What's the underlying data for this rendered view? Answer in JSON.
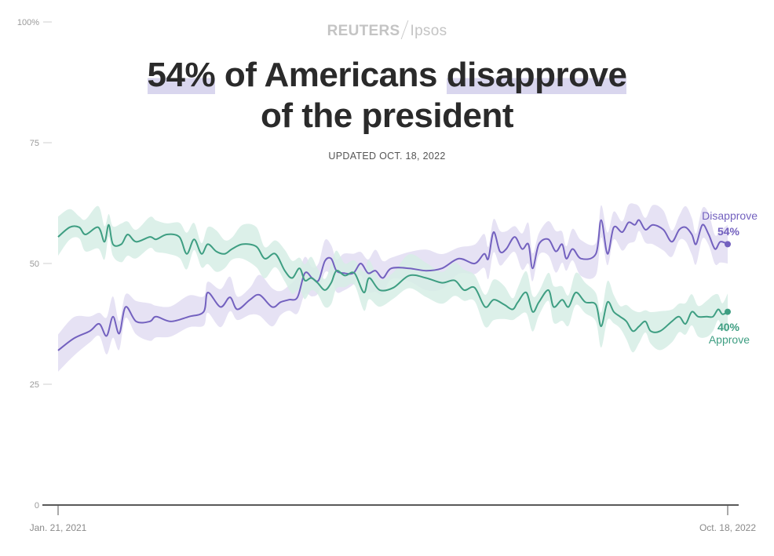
{
  "header": {
    "brand_left": "REUTERS",
    "brand_right": "Ipsos",
    "title_hl1": "54%",
    "title_mid": " of Americans ",
    "title_hl2": "disapprove",
    "title_line2": "of the president",
    "updated": "UPDATED OCT. 18, 2022"
  },
  "colors": {
    "disapprove": "#7361bf",
    "disapprove_band": "#e2ddf2",
    "approve": "#3e9e82",
    "approve_band": "#d6ede5",
    "axis": "#222222",
    "tick_text": "#9a9a9a"
  },
  "chart_data": {
    "type": "line",
    "y_ticks": [
      {
        "value": 100,
        "label": "100%"
      },
      {
        "value": 75,
        "label": "75"
      },
      {
        "value": 50,
        "label": "50"
      },
      {
        "value": 25,
        "label": "25"
      },
      {
        "value": 0,
        "label": "0"
      }
    ],
    "ylim": [
      0,
      100
    ],
    "x_range": [
      "2021-01-21",
      "2022-10-18"
    ],
    "x_tick_labels": [
      "Jan. 21, 2021",
      "Oct. 18, 2022"
    ],
    "end_labels": {
      "disapprove_name": "Disapprove",
      "disapprove_value": "54%",
      "approve_value": "40%",
      "approve_name": "Approve"
    },
    "series": [
      {
        "name": "Disapprove",
        "points": [
          [
            "2021-01-21",
            32
          ],
          [
            "2021-02-05",
            34.5
          ],
          [
            "2021-02-20",
            36
          ],
          [
            "2021-03-01",
            37.5
          ],
          [
            "2021-03-08",
            35
          ],
          [
            "2021-03-14",
            39
          ],
          [
            "2021-03-20",
            35.5
          ],
          [
            "2021-03-26",
            41
          ],
          [
            "2021-04-05",
            38
          ],
          [
            "2021-04-18",
            38
          ],
          [
            "2021-04-24",
            39
          ],
          [
            "2021-05-08",
            38
          ],
          [
            "2021-05-25",
            39
          ],
          [
            "2021-06-08",
            40
          ],
          [
            "2021-06-12",
            44
          ],
          [
            "2021-06-24",
            41
          ],
          [
            "2021-07-03",
            43
          ],
          [
            "2021-07-10",
            40.5
          ],
          [
            "2021-07-22",
            42.5
          ],
          [
            "2021-07-31",
            43.5
          ],
          [
            "2021-08-12",
            41
          ],
          [
            "2021-08-20",
            42
          ],
          [
            "2021-08-28",
            42.5
          ],
          [
            "2021-09-05",
            43
          ],
          [
            "2021-09-12",
            48
          ],
          [
            "2021-09-19",
            47
          ],
          [
            "2021-09-25",
            46.5
          ],
          [
            "2021-10-01",
            50.5
          ],
          [
            "2021-10-07",
            51
          ],
          [
            "2021-10-12",
            48.5
          ],
          [
            "2021-10-19",
            48
          ],
          [
            "2021-10-28",
            48
          ],
          [
            "2021-11-04",
            50
          ],
          [
            "2021-11-11",
            48
          ],
          [
            "2021-11-18",
            48.5
          ],
          [
            "2021-11-25",
            47
          ],
          [
            "2021-12-03",
            49
          ],
          [
            "2021-12-20",
            49
          ],
          [
            "2022-01-05",
            48.5
          ],
          [
            "2022-01-20",
            49
          ],
          [
            "2022-02-05",
            51
          ],
          [
            "2022-02-20",
            50
          ],
          [
            "2022-03-01",
            52
          ],
          [
            "2022-03-05",
            51
          ],
          [
            "2022-03-10",
            56.5
          ],
          [
            "2022-03-16",
            52.5
          ],
          [
            "2022-03-22",
            53
          ],
          [
            "2022-03-30",
            55.5
          ],
          [
            "2022-04-06",
            53
          ],
          [
            "2022-04-12",
            54
          ],
          [
            "2022-04-16",
            49
          ],
          [
            "2022-04-22",
            54
          ],
          [
            "2022-05-01",
            55
          ],
          [
            "2022-05-08",
            52.5
          ],
          [
            "2022-05-14",
            54
          ],
          [
            "2022-05-18",
            51
          ],
          [
            "2022-05-24",
            53
          ],
          [
            "2022-06-01",
            51
          ],
          [
            "2022-06-15",
            52
          ],
          [
            "2022-06-20",
            59
          ],
          [
            "2022-06-26",
            52
          ],
          [
            "2022-07-02",
            57.5
          ],
          [
            "2022-07-10",
            56.5
          ],
          [
            "2022-07-16",
            58.5
          ],
          [
            "2022-07-22",
            58
          ],
          [
            "2022-07-26",
            59
          ],
          [
            "2022-08-01",
            57
          ],
          [
            "2022-08-08",
            58
          ],
          [
            "2022-08-18",
            57
          ],
          [
            "2022-08-26",
            54.5
          ],
          [
            "2022-09-02",
            57
          ],
          [
            "2022-09-08",
            57.5
          ],
          [
            "2022-09-14",
            56
          ],
          [
            "2022-09-18",
            54
          ],
          [
            "2022-09-24",
            58
          ],
          [
            "2022-09-30",
            56
          ],
          [
            "2022-10-06",
            53
          ],
          [
            "2022-10-11",
            54.5
          ],
          [
            "2022-10-18",
            54
          ]
        ]
      },
      {
        "name": "Approve",
        "points": [
          [
            "2021-01-21",
            55.5
          ],
          [
            "2021-02-01",
            57.5
          ],
          [
            "2021-02-10",
            57.5
          ],
          [
            "2021-02-16",
            56
          ],
          [
            "2021-02-28",
            57.5
          ],
          [
            "2021-03-06",
            54.5
          ],
          [
            "2021-03-10",
            58
          ],
          [
            "2021-03-14",
            54
          ],
          [
            "2021-03-22",
            54
          ],
          [
            "2021-03-28",
            56
          ],
          [
            "2021-04-05",
            54.5
          ],
          [
            "2021-04-18",
            55.5
          ],
          [
            "2021-04-24",
            55
          ],
          [
            "2021-05-04",
            56
          ],
          [
            "2021-05-16",
            55.5
          ],
          [
            "2021-05-23",
            52
          ],
          [
            "2021-05-30",
            55
          ],
          [
            "2021-06-06",
            52
          ],
          [
            "2021-06-12",
            54
          ],
          [
            "2021-06-20",
            52.5
          ],
          [
            "2021-06-28",
            52
          ],
          [
            "2021-07-05",
            53
          ],
          [
            "2021-07-15",
            54
          ],
          [
            "2021-07-28",
            53.5
          ],
          [
            "2021-08-05",
            51
          ],
          [
            "2021-08-15",
            52
          ],
          [
            "2021-08-24",
            48.5
          ],
          [
            "2021-08-31",
            47
          ],
          [
            "2021-09-07",
            49
          ],
          [
            "2021-09-12",
            46.5
          ],
          [
            "2021-09-18",
            47
          ],
          [
            "2021-09-24",
            46
          ],
          [
            "2021-10-01",
            44.5
          ],
          [
            "2021-10-07",
            46
          ],
          [
            "2021-10-12",
            48.5
          ],
          [
            "2021-10-20",
            47.5
          ],
          [
            "2021-10-29",
            48
          ],
          [
            "2021-11-07",
            44
          ],
          [
            "2021-11-12",
            47
          ],
          [
            "2021-11-22",
            44.5
          ],
          [
            "2021-12-05",
            45
          ],
          [
            "2021-12-20",
            47.5
          ],
          [
            "2022-01-05",
            47
          ],
          [
            "2022-01-20",
            46
          ],
          [
            "2022-02-01",
            46.5
          ],
          [
            "2022-02-10",
            44.5
          ],
          [
            "2022-02-20",
            45
          ],
          [
            "2022-03-02",
            41
          ],
          [
            "2022-03-10",
            42.5
          ],
          [
            "2022-03-20",
            41.5
          ],
          [
            "2022-03-28",
            40.5
          ],
          [
            "2022-04-02",
            42
          ],
          [
            "2022-04-10",
            44
          ],
          [
            "2022-04-16",
            40
          ],
          [
            "2022-04-22",
            42
          ],
          [
            "2022-05-01",
            44.5
          ],
          [
            "2022-05-06",
            41
          ],
          [
            "2022-05-14",
            42.5
          ],
          [
            "2022-05-20",
            41
          ],
          [
            "2022-05-27",
            44
          ],
          [
            "2022-06-05",
            42
          ],
          [
            "2022-06-15",
            41.5
          ],
          [
            "2022-06-20",
            37
          ],
          [
            "2022-06-26",
            42
          ],
          [
            "2022-07-02",
            40
          ],
          [
            "2022-07-08",
            39
          ],
          [
            "2022-07-14",
            38
          ],
          [
            "2022-07-20",
            36
          ],
          [
            "2022-07-26",
            37
          ],
          [
            "2022-08-01",
            38
          ],
          [
            "2022-08-06",
            36
          ],
          [
            "2022-08-15",
            36
          ],
          [
            "2022-08-26",
            38
          ],
          [
            "2022-09-02",
            39
          ],
          [
            "2022-09-08",
            37.5
          ],
          [
            "2022-09-14",
            40
          ],
          [
            "2022-09-20",
            39
          ],
          [
            "2022-09-28",
            39
          ],
          [
            "2022-10-04",
            39
          ],
          [
            "2022-10-09",
            40.5
          ],
          [
            "2022-10-13",
            39.5
          ],
          [
            "2022-10-18",
            40
          ]
        ]
      }
    ],
    "grid": false,
    "legend": "end-labels"
  }
}
